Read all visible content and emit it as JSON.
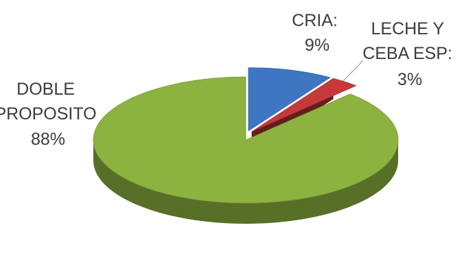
{
  "chart_data": {
    "type": "pie",
    "style": "3d",
    "legend": "none",
    "slices": [
      {
        "name": "DOBLE PROPOSITO",
        "value": 88,
        "label_lines": [
          "DOBLE",
          "PROPOSITO",
          "88%"
        ],
        "color": "#8CB33F",
        "exploded": false
      },
      {
        "name": "CRIA",
        "value": 9,
        "label_lines": [
          "CRIA:",
          "9%"
        ],
        "color": "#3F76C2",
        "exploded": true
      },
      {
        "name": "LECHE Y CEBA ESP",
        "value": 3,
        "label_lines": [
          "LECHE Y",
          "CEBA ESP:",
          "3%"
        ],
        "color": "#C6393A",
        "exploded": true
      }
    ]
  }
}
